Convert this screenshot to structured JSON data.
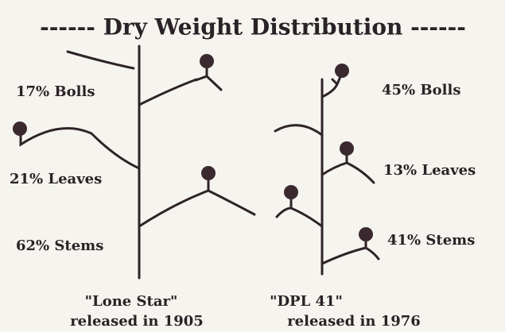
{
  "title": "------ Dry Weight Distribution ------",
  "plants": [
    {
      "labels": [
        "17% Bolls",
        "21% Leaves",
        "62% Stems"
      ],
      "name": "\"Lone Star\"",
      "caption": "released in 1905"
    },
    {
      "labels": [
        "45% Bolls",
        "13% Leaves",
        "41% Stems"
      ],
      "name": "\"DPL 41\"",
      "caption": "released in 1976"
    }
  ]
}
